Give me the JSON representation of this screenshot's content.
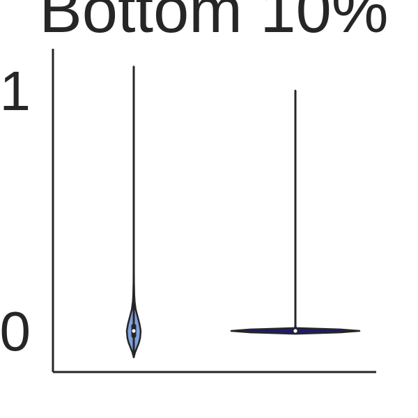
{
  "chart_data": {
    "type": "violin",
    "title": "Bottom 10%",
    "xlabel": "",
    "ylabel": "",
    "ylim": [
      -0.08,
      1.16
    ],
    "yticks": [
      0,
      1
    ],
    "ytick_labels": [
      "0",
      "1"
    ],
    "grid": false,
    "categories": [
      "a",
      "b"
    ],
    "category_labels_visible": [
      "",
      ""
    ],
    "series": [
      {
        "category": "a",
        "color": "#7fa2dc",
        "min": -0.11,
        "max": 1.1,
        "median": 0.0,
        "q1": -0.02,
        "q3": 0.02,
        "density": [
          [
            -0.11,
            0.0
          ],
          [
            -0.09,
            0.02
          ],
          [
            -0.07,
            0.05
          ],
          [
            -0.05,
            0.08
          ],
          [
            -0.03,
            0.1
          ],
          [
            0.0,
            0.11
          ],
          [
            0.03,
            0.09
          ],
          [
            0.06,
            0.06
          ],
          [
            0.09,
            0.03
          ],
          [
            0.12,
            0.015
          ],
          [
            0.15,
            0.008
          ],
          [
            0.2,
            0.004
          ],
          [
            0.3,
            0.002
          ],
          [
            0.5,
            0.001
          ],
          [
            0.8,
            0.0005
          ],
          [
            1.1,
            0.0
          ]
        ]
      },
      {
        "category": "b",
        "color": "#1c1c6e",
        "min": 0.0,
        "max": 1.0,
        "median": 0.0,
        "q1": 0.0,
        "q3": 0.0,
        "density": [
          [
            -0.012,
            0.0
          ],
          [
            -0.006,
            0.7
          ],
          [
            0.0,
            1.0
          ],
          [
            0.006,
            0.7
          ],
          [
            0.012,
            0.01
          ],
          [
            0.02,
            0.003
          ],
          [
            0.1,
            0.0015
          ],
          [
            0.4,
            0.001
          ],
          [
            0.7,
            0.0008
          ],
          [
            1.0,
            0.0
          ]
        ]
      }
    ]
  }
}
